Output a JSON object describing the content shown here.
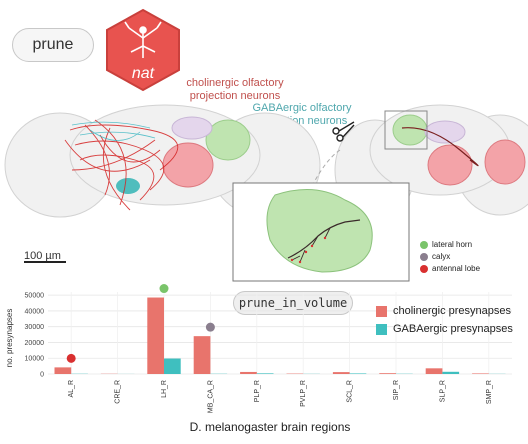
{
  "top_button": {
    "label": "prune"
  },
  "logo": {
    "text": "nat"
  },
  "labels": {
    "cholinergic": "cholinergic olfactory\nprojection neurons",
    "gabaergic": "GABAergic olfactory\nprojection neurons",
    "scale_bar": "100 µm",
    "function_name": "prune_in_volume",
    "x_axis_title": "D. melanogaster brain regions",
    "y_axis_title": "no. presynapses"
  },
  "inset_legend": [
    {
      "label": "lateral horn",
      "color": "#7ac46a"
    },
    {
      "label": "calyx",
      "color": "#8a7e8e"
    },
    {
      "label": "antennal lobe",
      "color": "#d93030"
    }
  ],
  "chart_legend": [
    {
      "label": "cholinergic presynapses",
      "color": "#e8746c"
    },
    {
      "label": "GABAergic presynapses",
      "color": "#3fbfbf"
    }
  ],
  "colors": {
    "cholinergic": "#e8746c",
    "gabaergic": "#3fbfbf",
    "logo_red": "#e8534f",
    "lh_green": "#7ac46a",
    "al_red": "#d93030",
    "calyx_grey": "#8a7e8e"
  },
  "chart_data": {
    "type": "bar",
    "categories": [
      "AL_R",
      "CRE_R",
      "LH_R",
      "MB_CA_R",
      "PLP_R",
      "PVLP_R",
      "SCL_R",
      "SIP_R",
      "SLP_R",
      "SMP_R"
    ],
    "series": [
      {
        "name": "cholinergic presynapses",
        "values": [
          4200,
          150,
          48500,
          24000,
          1300,
          250,
          1200,
          500,
          3600,
          350
        ]
      },
      {
        "name": "GABAergic presynapses",
        "values": [
          150,
          50,
          9800,
          150,
          400,
          100,
          350,
          150,
          1400,
          100
        ]
      }
    ],
    "yticks": [
      0,
      10000,
      20000,
      30000,
      40000,
      50000
    ],
    "ylim": [
      0,
      52000
    ],
    "xlabel": "D. melanogaster brain regions",
    "ylabel": "no. presynapses",
    "markers": [
      {
        "category": "AL_R",
        "kind": "antennal lobe",
        "color": "#d93030"
      },
      {
        "category": "LH_R",
        "kind": "lateral horn",
        "color": "#7ac46a"
      },
      {
        "category": "MB_CA_R",
        "kind": "calyx",
        "color": "#8a7e8e"
      }
    ],
    "grid": true,
    "legend_position": "right"
  }
}
